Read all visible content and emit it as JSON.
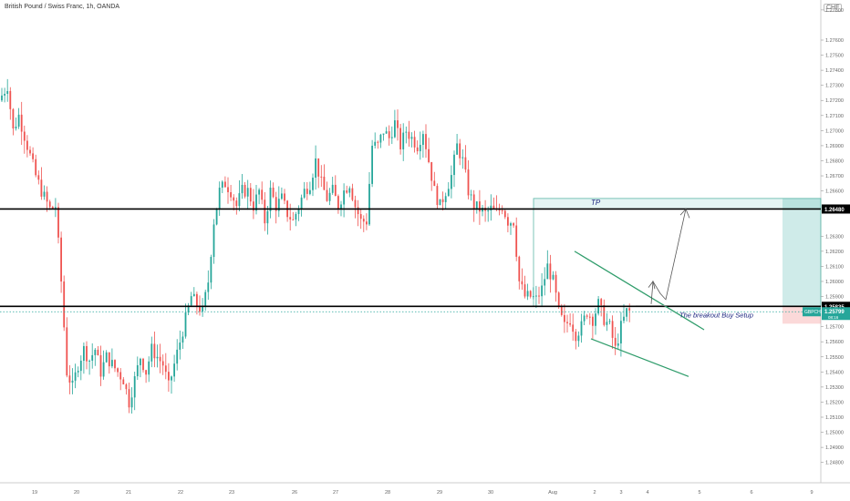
{
  "chart_data": {
    "type": "candlestick",
    "title": "British Pound / Swiss Franc, 1h, OANDA",
    "currency_badge": "CHF",
    "ylim": [
      1.248,
      1.278
    ],
    "y_ticks": [
      {
        "value": 1.278,
        "label": "1.27800"
      },
      {
        "value": 1.276,
        "label": "1.27600"
      },
      {
        "value": 1.275,
        "label": "1.27500"
      },
      {
        "value": 1.274,
        "label": "1.27400"
      },
      {
        "value": 1.273,
        "label": "1.27300"
      },
      {
        "value": 1.272,
        "label": "1.27200"
      },
      {
        "value": 1.271,
        "label": "1.27100"
      },
      {
        "value": 1.27,
        "label": "1.27000"
      },
      {
        "value": 1.269,
        "label": "1.26900"
      },
      {
        "value": 1.268,
        "label": "1.26800"
      },
      {
        "value": 1.267,
        "label": "1.26700"
      },
      {
        "value": 1.266,
        "label": "1.26600"
      },
      {
        "value": 1.263,
        "label": "1.26300"
      },
      {
        "value": 1.262,
        "label": "1.26200"
      },
      {
        "value": 1.261,
        "label": "1.26100"
      },
      {
        "value": 1.26,
        "label": "1.26000"
      },
      {
        "value": 1.259,
        "label": "1.25900"
      },
      {
        "value": 1.257,
        "label": "1.25700"
      },
      {
        "value": 1.256,
        "label": "1.25600"
      },
      {
        "value": 1.255,
        "label": "1.25500"
      },
      {
        "value": 1.254,
        "label": "1.25400"
      },
      {
        "value": 1.253,
        "label": "1.25300"
      },
      {
        "value": 1.252,
        "label": "1.25200"
      },
      {
        "value": 1.251,
        "label": "1.25100"
      },
      {
        "value": 1.25,
        "label": "1.25000"
      },
      {
        "value": 1.249,
        "label": "1.24900"
      },
      {
        "value": 1.248,
        "label": "1.24800"
      }
    ],
    "x_ticks": [
      "19",
      "20",
      "21",
      "22",
      "23",
      "26",
      "27",
      "28",
      "29",
      "30",
      "Aug",
      "2",
      "3",
      "4",
      "5",
      "6",
      "9"
    ],
    "horizontal_levels": [
      {
        "value": 1.2648,
        "label": "1.26480",
        "color": "#000000"
      },
      {
        "value": 1.25835,
        "label": "1.25835",
        "color": "#000000"
      }
    ],
    "last_price": {
      "symbol": "GBPCHF",
      "value": 1.25799,
      "label": "1.25799",
      "sub_label": "08:16",
      "color": "#26a69a"
    },
    "annotations": {
      "tp_label": "TP",
      "setup_label": "The breakout Buy Setup"
    },
    "price_path": [
      [
        0,
        1.272
      ],
      [
        3,
        1.273
      ],
      [
        5,
        1.27
      ],
      [
        7,
        1.271
      ],
      [
        10,
        1.269
      ],
      [
        13,
        1.267
      ],
      [
        15,
        1.266
      ],
      [
        18,
        1.2648
      ],
      [
        20,
        1.265
      ],
      [
        22,
        1.26
      ],
      [
        24,
        1.254
      ],
      [
        26,
        1.253
      ],
      [
        28,
        1.2545
      ],
      [
        30,
        1.2555
      ],
      [
        32,
        1.2548
      ],
      [
        34,
        1.2555
      ],
      [
        36,
        1.254
      ],
      [
        38,
        1.255
      ],
      [
        40,
        1.2545
      ],
      [
        42,
        1.254
      ],
      [
        44,
        1.2535
      ],
      [
        46,
        1.252
      ],
      [
        48,
        1.2535
      ],
      [
        50,
        1.255
      ],
      [
        52,
        1.254
      ],
      [
        54,
        1.2555
      ],
      [
        56,
        1.255
      ],
      [
        58,
        1.2545
      ],
      [
        60,
        1.253
      ],
      [
        62,
        1.2545
      ],
      [
        64,
        1.256
      ],
      [
        66,
        1.2575
      ],
      [
        68,
        1.259
      ],
      [
        70,
        1.2585
      ],
      [
        72,
        1.258
      ],
      [
        74,
        1.26
      ],
      [
        76,
        1.264
      ],
      [
        78,
        1.266
      ],
      [
        80,
        1.2665
      ],
      [
        82,
        1.266
      ],
      [
        84,
        1.265
      ],
      [
        86,
        1.266
      ],
      [
        88,
        1.266
      ],
      [
        90,
        1.265
      ],
      [
        92,
        1.266
      ],
      [
        94,
        1.264
      ],
      [
        96,
        1.266
      ],
      [
        98,
        1.265
      ],
      [
        100,
        1.2655
      ],
      [
        102,
        1.2645
      ],
      [
        104,
        1.264
      ],
      [
        106,
        1.265
      ],
      [
        108,
        1.266
      ],
      [
        110,
        1.2665
      ],
      [
        112,
        1.268
      ],
      [
        114,
        1.2665
      ],
      [
        116,
        1.2655
      ],
      [
        118,
        1.266
      ],
      [
        120,
        1.265
      ],
      [
        122,
        1.266
      ],
      [
        124,
        1.2665
      ],
      [
        126,
        1.265
      ],
      [
        128,
        1.264
      ],
      [
        130,
        1.264
      ],
      [
        132,
        1.269
      ],
      [
        134,
        1.269
      ],
      [
        136,
        1.27
      ],
      [
        138,
        1.2695
      ],
      [
        140,
        1.2705
      ],
      [
        142,
        1.269
      ],
      [
        144,
        1.27
      ],
      [
        146,
        1.2695
      ],
      [
        148,
        1.269
      ],
      [
        150,
        1.27
      ],
      [
        152,
        1.268
      ],
      [
        154,
        1.266
      ],
      [
        156,
        1.265
      ],
      [
        158,
        1.266
      ],
      [
        160,
        1.267
      ],
      [
        162,
        1.269
      ],
      [
        164,
        1.268
      ],
      [
        166,
        1.266
      ],
      [
        168,
        1.265
      ],
      [
        170,
        1.2648
      ],
      [
        172,
        1.2645
      ],
      [
        174,
        1.2648
      ],
      [
        176,
        1.2645
      ],
      [
        178,
        1.265
      ],
      [
        180,
        1.264
      ],
      [
        182,
        1.264
      ],
      [
        184,
        1.26
      ],
      [
        186,
        1.259
      ],
      [
        188,
        1.259
      ],
      [
        190,
        1.2588
      ],
      [
        192,
        1.2595
      ],
      [
        194,
        1.261
      ],
      [
        196,
        1.26
      ],
      [
        198,
        1.258
      ],
      [
        200,
        1.257
      ],
      [
        202,
        1.2575
      ],
      [
        204,
        1.2565
      ],
      [
        206,
        1.257
      ],
      [
        208,
        1.258
      ],
      [
        210,
        1.2575
      ],
      [
        212,
        1.2585
      ],
      [
        214,
        1.2575
      ],
      [
        216,
        1.257
      ],
      [
        218,
        1.2555
      ],
      [
        220,
        1.257
      ],
      [
        222,
        1.258
      ]
    ]
  }
}
